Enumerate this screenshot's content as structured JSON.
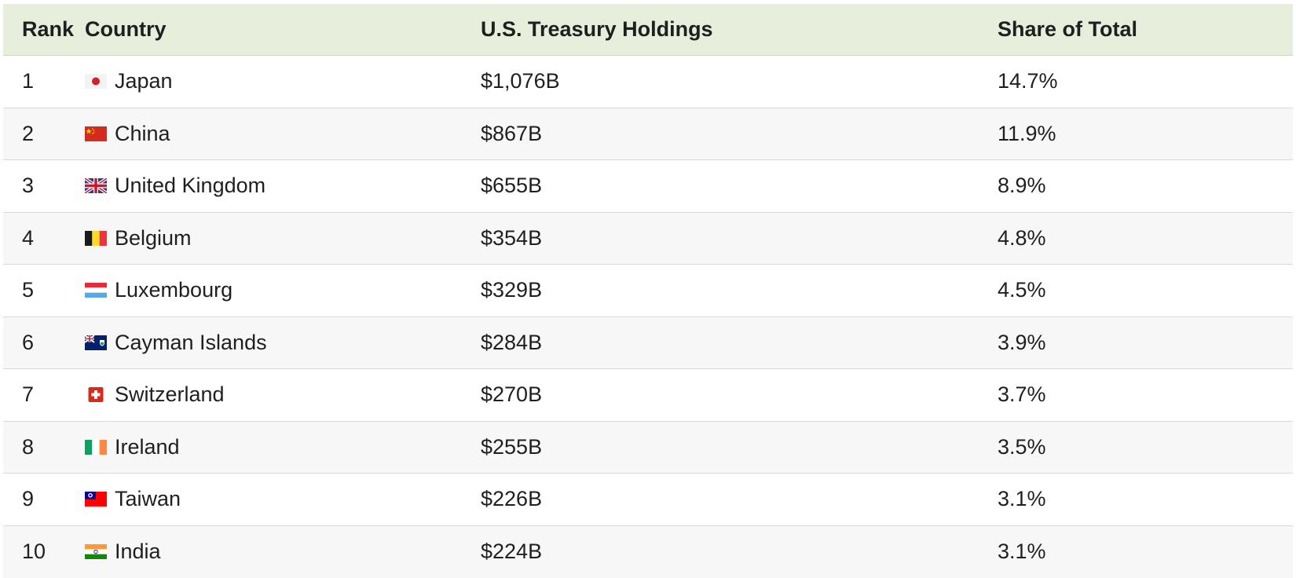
{
  "table": {
    "headers": {
      "rank": "Rank",
      "country": "Country",
      "holdings": "U.S. Treasury Holdings",
      "share": "Share of Total"
    },
    "rows": [
      {
        "rank": "1",
        "country": "Japan",
        "holdings": "$1,076B",
        "share": "14.7%",
        "flag": "japan-flag-icon"
      },
      {
        "rank": "2",
        "country": "China",
        "holdings": "$867B",
        "share": "11.9%",
        "flag": "china-flag-icon"
      },
      {
        "rank": "3",
        "country": "United Kingdom",
        "holdings": "$655B",
        "share": "8.9%",
        "flag": "uk-flag-icon"
      },
      {
        "rank": "4",
        "country": "Belgium",
        "holdings": "$354B",
        "share": "4.8%",
        "flag": "belgium-flag-icon"
      },
      {
        "rank": "5",
        "country": "Luxembourg",
        "holdings": "$329B",
        "share": "4.5%",
        "flag": "luxembourg-flag-icon"
      },
      {
        "rank": "6",
        "country": "Cayman Islands",
        "holdings": "$284B",
        "share": "3.9%",
        "flag": "cayman-islands-flag-icon"
      },
      {
        "rank": "7",
        "country": "Switzerland",
        "holdings": "$270B",
        "share": "3.7%",
        "flag": "switzerland-flag-icon"
      },
      {
        "rank": "8",
        "country": "Ireland",
        "holdings": "$255B",
        "share": "3.5%",
        "flag": "ireland-flag-icon"
      },
      {
        "rank": "9",
        "country": "Taiwan",
        "holdings": "$226B",
        "share": "3.1%",
        "flag": "taiwan-flag-icon"
      },
      {
        "rank": "10",
        "country": "India",
        "holdings": "$224B",
        "share": "3.1%",
        "flag": "india-flag-icon"
      }
    ]
  },
  "colors": {
    "header_bg": "#e7eedc",
    "alt_row_bg": "#f7f7f7",
    "divider": "#d9d9d9"
  }
}
